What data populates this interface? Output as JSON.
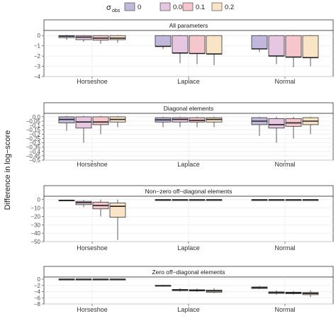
{
  "legend": {
    "title": "σ",
    "title_sub": "obs",
    "entries": [
      "0",
      "0.05",
      "0.1",
      "0.2"
    ],
    "colors": [
      "#c2b8dc",
      "#e6c6e0",
      "#f5c6cc",
      "#fae4c6"
    ]
  },
  "ylabel": "Difference in log−score",
  "chart_data": [
    {
      "type": "box",
      "title": "All parameters",
      "categories": [
        "Horseshoe",
        "Laplace",
        "Normal"
      ],
      "ylim": [
        -4,
        0.5
      ],
      "yticks": [
        0,
        -1,
        -2,
        -3,
        -4
      ],
      "ytick_labels": [
        "0",
        "−1",
        "−2",
        "−3",
        "−4"
      ],
      "series": [
        {
          "name": "0",
          "boxes": [
            {
              "low": -0.4,
              "q1": -0.2,
              "median": -0.05,
              "q3": 0.0,
              "high": 0.05
            },
            {
              "low": -1.3,
              "q1": -1.05,
              "median": -1.05,
              "q3": 0.0,
              "high": 0.05
            },
            {
              "low": -1.6,
              "q1": -1.3,
              "median": -1.3,
              "q3": 0.0,
              "high": 0.05
            }
          ]
        },
        {
          "name": "0.05",
          "boxes": [
            {
              "low": -0.6,
              "q1": -0.4,
              "median": -0.15,
              "q3": 0.0,
              "high": 0.05
            },
            {
              "low": -2.7,
              "q1": -1.7,
              "median": -1.7,
              "q3": 0.0,
              "high": 0.05
            },
            {
              "low": -2.8,
              "q1": -2.0,
              "median": -2.0,
              "q3": 0.0,
              "high": 0.05
            }
          ]
        },
        {
          "name": "0.1",
          "boxes": [
            {
              "low": -0.8,
              "q1": -0.45,
              "median": -0.25,
              "q3": 0.0,
              "high": 0.05
            },
            {
              "low": -2.8,
              "q1": -1.75,
              "median": -1.75,
              "q3": 0.0,
              "high": 0.05
            },
            {
              "low": -3.1,
              "q1": -2.1,
              "median": -2.1,
              "q3": 0.0,
              "high": 0.05
            }
          ]
        },
        {
          "name": "0.2",
          "boxes": [
            {
              "low": -0.7,
              "q1": -0.4,
              "median": -0.25,
              "q3": 0.0,
              "high": 0.05
            },
            {
              "low": -2.9,
              "q1": -1.8,
              "median": -1.8,
              "q3": 0.0,
              "high": 0.05
            },
            {
              "low": -3.0,
              "q1": -2.15,
              "median": -2.15,
              "q3": 0.0,
              "high": 0.05
            }
          ]
        }
      ]
    },
    {
      "type": "box",
      "title": "Diagonal elements",
      "categories": [
        "Horseshoe",
        "Laplace",
        "Normal"
      ],
      "ylim": [
        -0.5,
        0.04
      ],
      "yticks": [
        0,
        -0.05,
        -0.1,
        -0.15,
        -0.2,
        -0.25,
        -0.3,
        -0.35,
        -0.4,
        -0.45,
        -0.5
      ],
      "ytick_labels": [
        "0.0",
        "−0.05",
        "−0.1",
        "−0.15",
        "−0.2",
        "−0.25",
        "−0.3",
        "−0.35",
        "−0.4",
        "−0.45",
        "−0.5"
      ],
      "series": [
        {
          "name": "0",
          "boxes": [
            {
              "low": -0.16,
              "q1": -0.07,
              "median": -0.03,
              "q3": 0.0,
              "high": 0.01
            },
            {
              "low": -0.12,
              "q1": -0.06,
              "median": -0.035,
              "q3": -0.01,
              "high": 0.0
            },
            {
              "low": -0.22,
              "q1": -0.09,
              "median": -0.05,
              "q3": -0.01,
              "high": 0.0
            }
          ]
        },
        {
          "name": "0.05",
          "boxes": [
            {
              "low": -0.3,
              "q1": -0.13,
              "median": -0.06,
              "q3": 0.0,
              "high": 0.01
            },
            {
              "low": -0.12,
              "q1": -0.06,
              "median": -0.03,
              "q3": -0.01,
              "high": 0.0
            },
            {
              "low": -0.3,
              "q1": -0.13,
              "median": -0.09,
              "q3": -0.02,
              "high": 0.0
            }
          ]
        },
        {
          "name": "0.1",
          "boxes": [
            {
              "low": -0.2,
              "q1": -0.09,
              "median": -0.06,
              "q3": 0.0,
              "high": 0.01
            },
            {
              "low": -0.12,
              "q1": -0.06,
              "median": -0.04,
              "q3": -0.01,
              "high": 0.0
            },
            {
              "low": -0.25,
              "q1": -0.11,
              "median": -0.07,
              "q3": -0.02,
              "high": 0.0
            }
          ]
        },
        {
          "name": "0.2",
          "boxes": [
            {
              "low": -0.12,
              "q1": -0.06,
              "median": -0.03,
              "q3": 0.0,
              "high": 0.01
            },
            {
              "low": -0.12,
              "q1": -0.06,
              "median": -0.03,
              "q3": -0.01,
              "high": 0.0
            },
            {
              "low": -0.2,
              "q1": -0.09,
              "median": -0.05,
              "q3": -0.01,
              "high": 0.0
            }
          ]
        }
      ]
    },
    {
      "type": "box",
      "title": "Non−zero off−diagonal elements",
      "categories": [
        "Horseshoe",
        "Laplace",
        "Normal"
      ],
      "ylim": [
        -50,
        4
      ],
      "yticks": [
        0,
        -10,
        -20,
        -30,
        -40,
        -50
      ],
      "ytick_labels": [
        "0",
        "−10",
        "−20",
        "−30",
        "−40",
        "−50"
      ],
      "series": [
        {
          "name": "0",
          "boxes": [
            {
              "low": -2,
              "q1": -1.5,
              "median": -1,
              "q3": -0.5,
              "high": 0
            },
            {
              "low": -0.5,
              "q1": -0.3,
              "median": -0.2,
              "q3": -0.1,
              "high": 0
            },
            {
              "low": -0.5,
              "q1": -0.3,
              "median": -0.2,
              "q3": -0.1,
              "high": 0
            }
          ]
        },
        {
          "name": "0.05",
          "boxes": [
            {
              "low": -9,
              "q1": -6,
              "median": -3.5,
              "q3": -2,
              "high": -0.5
            },
            {
              "low": -0.5,
              "q1": -0.3,
              "median": -0.2,
              "q3": -0.1,
              "high": 0
            },
            {
              "low": -0.5,
              "q1": -0.3,
              "median": -0.2,
              "q3": -0.1,
              "high": 0
            }
          ]
        },
        {
          "name": "0.1",
          "boxes": [
            {
              "low": -20,
              "q1": -11,
              "median": -7,
              "q3": -3,
              "high": 0
            },
            {
              "low": -0.5,
              "q1": -0.3,
              "median": -0.2,
              "q3": -0.1,
              "high": 0
            },
            {
              "low": -0.5,
              "q1": -0.3,
              "median": -0.2,
              "q3": -0.1,
              "high": 0
            }
          ]
        },
        {
          "name": "0.2",
          "boxes": [
            {
              "low": -48,
              "q1": -21,
              "median": -8,
              "q3": -4,
              "high": 0
            },
            {
              "low": -0.5,
              "q1": -0.3,
              "median": -0.2,
              "q3": -0.1,
              "high": 0
            },
            {
              "low": -0.5,
              "q1": -0.3,
              "median": -0.2,
              "q3": -0.1,
              "high": 0
            }
          ]
        }
      ]
    },
    {
      "type": "box",
      "title": "Zero off−diagonal elements",
      "categories": [
        "Horseshoe",
        "Laplace",
        "Normal"
      ],
      "ylim": [
        -8,
        0.7
      ],
      "yticks": [
        0,
        -2,
        -4,
        -6,
        -8
      ],
      "ytick_labels": [
        "0",
        "−2",
        "−4",
        "−6",
        "−8"
      ],
      "series": [
        {
          "name": "0",
          "boxes": [
            {
              "low": -0.05,
              "q1": -0.05,
              "median": 0,
              "q3": 0,
              "high": 0
            },
            {
              "low": -2.4,
              "q1": -2.2,
              "median": -2.1,
              "q3": -2.0,
              "high": -1.8
            },
            {
              "low": -3.2,
              "q1": -3.0,
              "median": -2.7,
              "q3": -2.5,
              "high": -2.2
            }
          ]
        },
        {
          "name": "0.05",
          "boxes": [
            {
              "low": -0.05,
              "q1": -0.05,
              "median": 0,
              "q3": 0,
              "high": 0
            },
            {
              "low": -4.0,
              "q1": -3.7,
              "median": -3.5,
              "q3": -3.3,
              "high": -2.9
            },
            {
              "low": -5.0,
              "q1": -4.6,
              "median": -4.3,
              "q3": -4.1,
              "high": -3.6
            }
          ]
        },
        {
          "name": "0.1",
          "boxes": [
            {
              "low": -0.05,
              "q1": -0.05,
              "median": 0,
              "q3": 0,
              "high": 0
            },
            {
              "low": -4.1,
              "q1": -3.8,
              "median": -3.6,
              "q3": -3.4,
              "high": -3.0
            },
            {
              "low": -5.0,
              "q1": -4.7,
              "median": -4.4,
              "q3": -4.2,
              "high": -3.8
            }
          ]
        },
        {
          "name": "0.2",
          "boxes": [
            {
              "low": -0.05,
              "q1": -0.05,
              "median": 0,
              "q3": 0,
              "high": 0
            },
            {
              "low": -4.5,
              "q1": -4.2,
              "median": -3.8,
              "q3": -3.5,
              "high": -2.9
            },
            {
              "low": -5.8,
              "q1": -5.0,
              "median": -4.6,
              "q3": -4.3,
              "high": -3.6
            }
          ]
        }
      ]
    }
  ]
}
